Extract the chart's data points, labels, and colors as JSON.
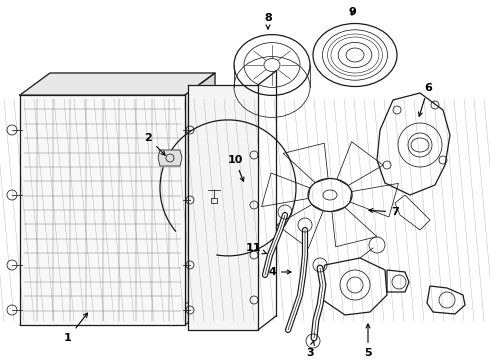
{
  "bg_color": "#ffffff",
  "line_color": "#1a1a1a",
  "label_color": "#000000",
  "arrow_color": "#000000",
  "figsize": [
    4.9,
    3.6
  ],
  "dpi": 100
}
